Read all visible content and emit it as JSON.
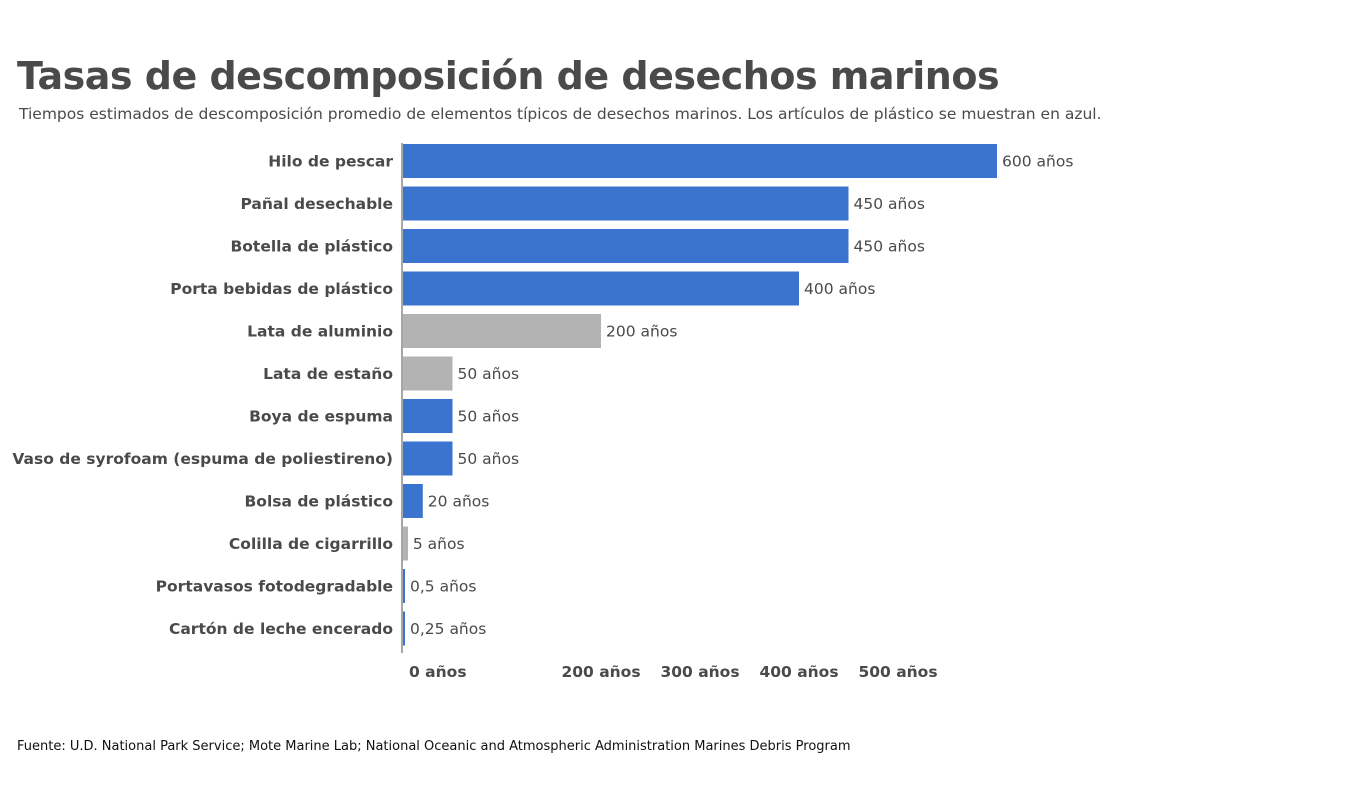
{
  "page": {
    "title": "Tasas de descomposición de desechos marinos",
    "subtitle": "Tiempos estimados de descomposición promedio de elementos típicos de desechos marinos. Los artículos de plástico se muestran en azul.",
    "source": "Fuente: U.D. National Park Service; Mote Marine Lab; National Oceanic and Atmospheric Administration Marines Debris Program"
  },
  "colors": {
    "plastic": "#3a74cf",
    "other": "#b3b3b3",
    "text": "#4a4a4a",
    "axis": "#8a8a8a"
  },
  "chart_data": {
    "type": "bar",
    "orientation": "horizontal",
    "title": "Tasas de descomposición de desechos marinos",
    "subtitle": "Tiempos estimados de descomposición promedio de elementos típicos de desechos marinos. Los artículos de plástico se muestran en azul.",
    "categories": [
      "Hilo de pescar",
      "Pañal desechable",
      "Botella de plástico",
      "Porta bebidas de plástico",
      "Lata de aluminio",
      "Lata de estaño",
      "Boya de espuma",
      "Vaso de syrofoam (espuma de poliestireno)",
      "Bolsa de plástico",
      "Colilla de cigarrillo",
      "Portavasos fotodegradable",
      "Cartón de leche encerado"
    ],
    "values": [
      600,
      450,
      450,
      400,
      200,
      50,
      50,
      50,
      20,
      5,
      0.5,
      0.25
    ],
    "value_labels": [
      "600 años",
      "450 años",
      "450 años",
      "400 años",
      "200 años",
      "50 años",
      "50 años",
      "50 años",
      "20 años",
      "5 años",
      "0,5 años",
      "0,25 años"
    ],
    "is_plastic": [
      true,
      true,
      true,
      true,
      false,
      false,
      true,
      true,
      true,
      false,
      true,
      true
    ],
    "xticks": [
      {
        "value": 0,
        "label": "0 años"
      },
      {
        "value": 200,
        "label": "200 años"
      },
      {
        "value": 300,
        "label": "300 años"
      },
      {
        "value": 400,
        "label": "400 años"
      },
      {
        "value": 500,
        "label": "500 años"
      }
    ],
    "xlim": [
      0,
      600
    ],
    "grid": false,
    "legend": "none"
  }
}
